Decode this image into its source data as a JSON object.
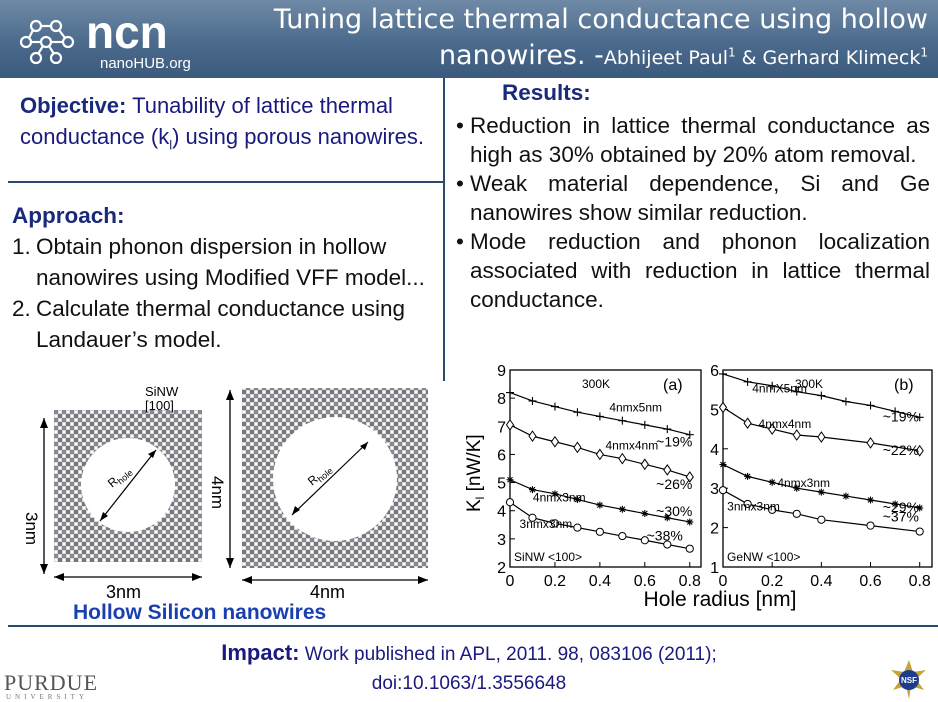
{
  "header": {
    "logo_text": "ncn",
    "logo_subtext": "nanoHUB.org",
    "title_line1": "Tuning lattice thermal conductance using hollow",
    "title_line2_main": "nanowires. -",
    "authors": "Abhijeet Paul",
    "author1_sup": "1",
    "author_sep": " & Gerhard Klimeck",
    "author2_sup": "1"
  },
  "objective": {
    "label": "Objective:",
    "text_a": " Tunability of lattice thermal conductance (k",
    "sub": "l",
    "text_b": ") using porous nanowires."
  },
  "approach": {
    "heading": "Approach:",
    "items": [
      {
        "num": "1.",
        "text": "Obtain phonon dispersion in hollow nanowires using Modified VFF model..."
      },
      {
        "num": "2.",
        "text": "Calculate thermal conductance using Landauer’s model."
      }
    ]
  },
  "results": {
    "heading": "Results:",
    "items": [
      "Reduction in lattice thermal conductance as high as 30% obtained by 20% atom removal.",
      "Weak material dependence, Si and Ge nanowires show similar reduction.",
      "Mode reduction and phonon localization associated with reduction in lattice thermal conductance."
    ]
  },
  "figure_left": {
    "tag_line1": "SiNW",
    "tag_line2": "[100]",
    "r_label_main": "R",
    "r_label_sub": "hole",
    "w1": "3nm",
    "h1": "3nm",
    "w2": "4nm",
    "h2": "4nm",
    "caption": "Hollow Silicon nanowires"
  },
  "chart_data": [
    {
      "type": "line",
      "panel": "(a)",
      "temperature": "300K",
      "material": "SiNW <100>",
      "xlabel": "Hole radius [nm]",
      "ylabel_main": "K",
      "ylabel_sub": "l",
      "ylabel_unit": " [nW/K]",
      "xlim": [
        0,
        0.85
      ],
      "ylim": [
        2,
        9
      ],
      "xticks": [
        "0",
        "0.2",
        "0.4",
        "0.6",
        "0.8"
      ],
      "yticks": [
        "2",
        "3",
        "4",
        "5",
        "6",
        "7",
        "8",
        "9"
      ],
      "series": [
        {
          "name": "4nmx5nm",
          "marker": "plus",
          "pct": "~19%",
          "x": [
            0,
            0.1,
            0.2,
            0.3,
            0.4,
            0.5,
            0.6,
            0.7,
            0.8
          ],
          "y": [
            8.2,
            7.9,
            7.7,
            7.5,
            7.35,
            7.2,
            7.05,
            6.9,
            6.7
          ]
        },
        {
          "name": "4nmx4nm",
          "marker": "diamond",
          "pct": "~26%",
          "x": [
            0,
            0.1,
            0.2,
            0.3,
            0.4,
            0.5,
            0.6,
            0.7,
            0.8
          ],
          "y": [
            7.05,
            6.65,
            6.45,
            6.25,
            6.0,
            5.85,
            5.65,
            5.45,
            5.2
          ]
        },
        {
          "name": "4nmx3nm",
          "marker": "star",
          "pct": "~30%",
          "x": [
            0,
            0.1,
            0.2,
            0.3,
            0.4,
            0.5,
            0.6,
            0.7,
            0.8
          ],
          "y": [
            5.1,
            4.75,
            4.6,
            4.4,
            4.2,
            4.05,
            3.9,
            3.75,
            3.6
          ]
        },
        {
          "name": "3nmx3nm",
          "marker": "circle",
          "pct": "~38%",
          "x": [
            0,
            0.1,
            0.2,
            0.3,
            0.4,
            0.5,
            0.6,
            0.7,
            0.8
          ],
          "y": [
            4.3,
            3.75,
            3.55,
            3.4,
            3.25,
            3.1,
            2.95,
            2.8,
            2.65
          ]
        }
      ]
    },
    {
      "type": "line",
      "panel": "(b)",
      "temperature": "300K",
      "material": "GeNW <100>",
      "xlabel": "Hole radius [nm]",
      "xlim": [
        0,
        0.85
      ],
      "ylim": [
        1,
        6
      ],
      "xticks": [
        "0",
        "0.2",
        "0.4",
        "0.6",
        "0.8"
      ],
      "yticks": [
        "1",
        "2",
        "3",
        "4",
        "5",
        "6"
      ],
      "series": [
        {
          "name": "4nmX5nm",
          "marker": "plus",
          "pct": "~19%",
          "x": [
            0,
            0.1,
            0.2,
            0.3,
            0.4,
            0.5,
            0.6,
            0.7,
            0.8
          ],
          "y": [
            5.9,
            5.7,
            5.6,
            5.45,
            5.35,
            5.2,
            5.1,
            4.95,
            4.8
          ]
        },
        {
          "name": "4nmx4nm",
          "marker": "diamond",
          "pct": "~22%",
          "x": [
            0,
            0.1,
            0.2,
            0.3,
            0.4,
            0.6,
            0.8
          ],
          "y": [
            5.05,
            4.65,
            4.5,
            4.35,
            4.3,
            4.15,
            3.95
          ]
        },
        {
          "name": "4nmx3nm",
          "marker": "star",
          "pct": "~29%",
          "x": [
            0,
            0.1,
            0.2,
            0.3,
            0.4,
            0.5,
            0.6,
            0.7,
            0.8
          ],
          "y": [
            3.6,
            3.3,
            3.15,
            3.0,
            2.9,
            2.8,
            2.7,
            2.6,
            2.5
          ]
        },
        {
          "name": "3nmx3nm",
          "marker": "circle",
          "pct": "~37%",
          "x": [
            0,
            0.1,
            0.2,
            0.3,
            0.4,
            0.6,
            0.8
          ],
          "y": [
            2.95,
            2.6,
            2.45,
            2.35,
            2.2,
            2.05,
            1.9
          ]
        }
      ]
    }
  ],
  "impact": {
    "label": "Impact:",
    "text_line1": " Work published in APL, 2011. 98, 083106 (2011);",
    "text_line2": "doi:10.1063/1.3556648"
  },
  "footer": {
    "purdue": "PURDUE",
    "purdue_sub": "UNIVERSITY",
    "nsf": "NSF"
  },
  "colors": {
    "header_top": "#6f8aa6",
    "header_bottom": "#3b5a7d",
    "rule": "#2c4a6f",
    "heading_blue": "#1a2a7a",
    "caption_blue": "#1a3fb0"
  }
}
